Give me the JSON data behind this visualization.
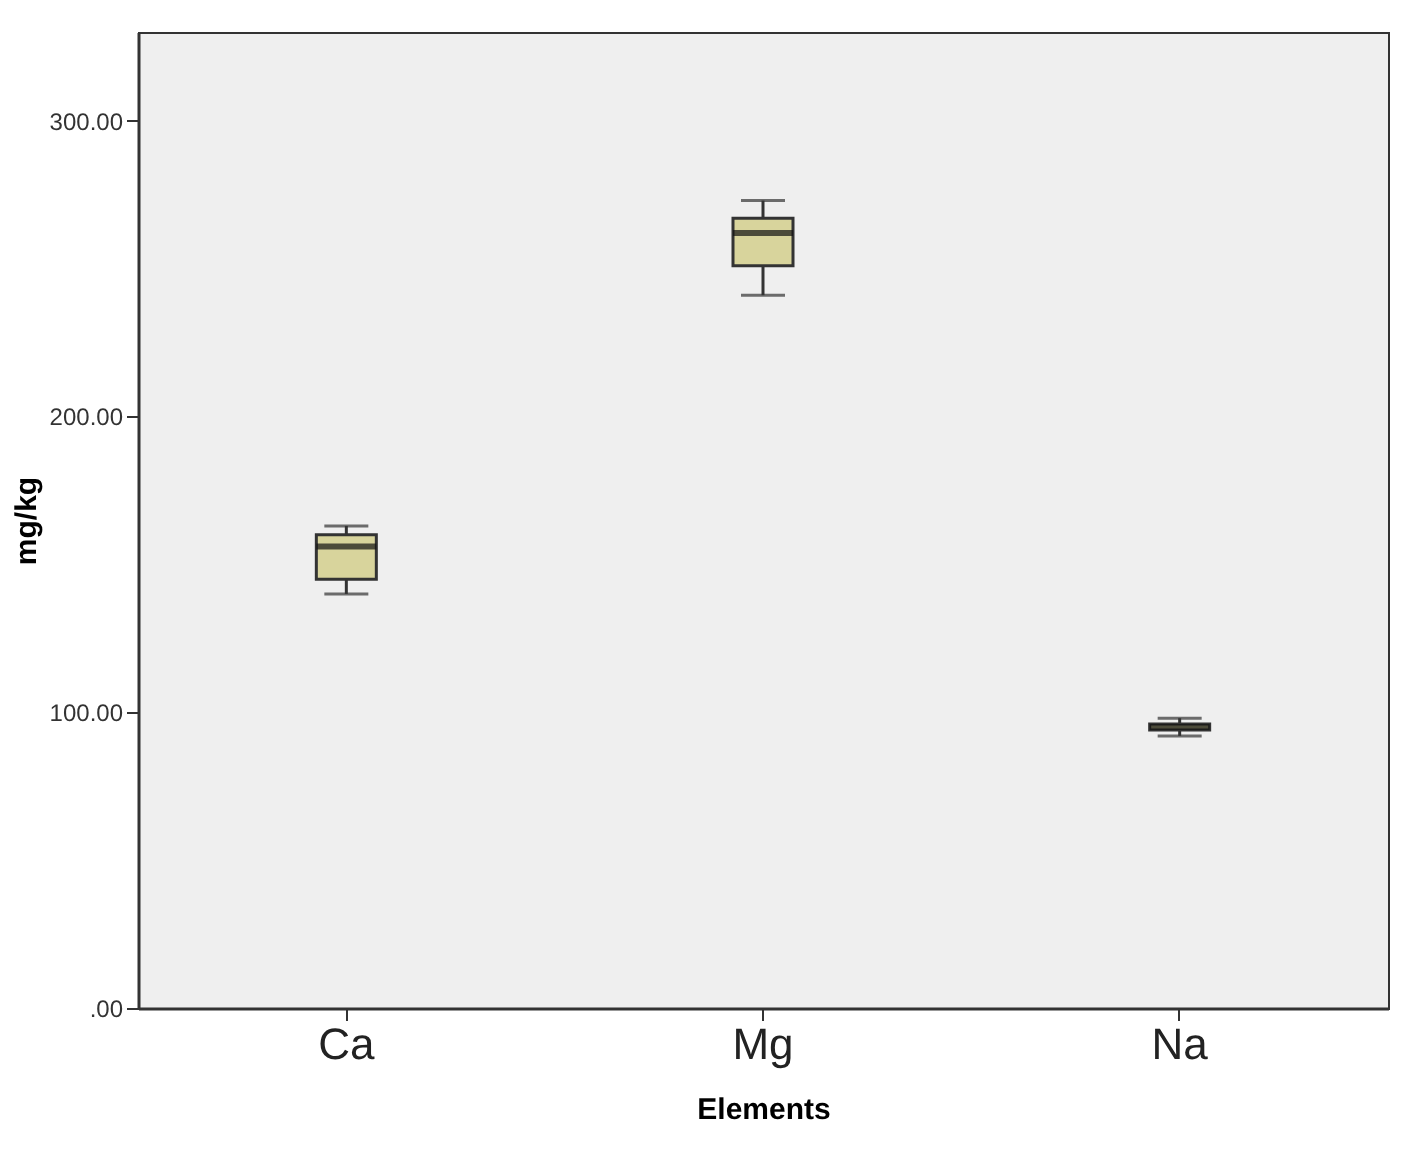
{
  "chart_data": {
    "type": "box",
    "xlabel": "Elements",
    "ylabel": "mg/kg",
    "categories": [
      "Ca",
      "Mg",
      "Na"
    ],
    "boxes": [
      {
        "low": 140,
        "q1": 145,
        "median": 156,
        "q3": 160,
        "high": 163
      },
      {
        "low": 241,
        "q1": 251,
        "median": 262,
        "q3": 267,
        "high": 273
      },
      {
        "low": 92,
        "q1": 94,
        "median": 95,
        "q3": 96,
        "high": 98
      }
    ],
    "color": "#d8d49c",
    "ylim": [
      0,
      330
    ],
    "yticks": [
      {
        "value": 0,
        "label": ".00"
      },
      {
        "value": 100,
        "label": "100.00"
      },
      {
        "value": 200,
        "label": "200.00"
      },
      {
        "value": 300,
        "label": "300.00"
      }
    ],
    "grid": false
  }
}
